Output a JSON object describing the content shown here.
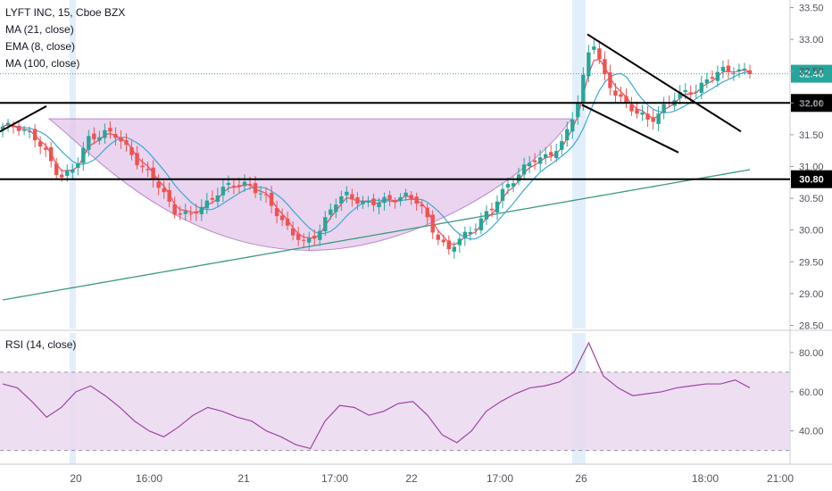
{
  "header": {
    "title": "LYFT INC, 15, Cboe BZX",
    "indicators": [
      "MA (21, close)",
      "EMA (8, close)",
      "MA (100, close)"
    ]
  },
  "rsi_label": "RSI (14, close)",
  "colors": {
    "candle_up": "#26a69a",
    "candle_down": "#ef5350",
    "ema": "#ef4b5c",
    "ma21": "#3fa7d6",
    "ma100": "#3a9a7e",
    "rsi_line": "#a043a9",
    "rsi_band": "#e9d7ee",
    "cup_fill": "#e3c6ea",
    "session_highlight": "#cfe4f8"
  },
  "chart_data": [
    {
      "type": "candlestick",
      "title": "LYFT INC, 15, Cboe BZX",
      "last_price": 32.46,
      "y_ticks": [
        28.5,
        29.0,
        29.5,
        30.0,
        30.5,
        31.0,
        31.5,
        32.0,
        32.5,
        33.0,
        33.5
      ],
      "ylim": [
        28.45,
        33.62
      ],
      "x_ticks": [
        "20",
        "16:00",
        "21",
        "17:00",
        "22",
        "17:00",
        "26",
        "18:00",
        "21:00"
      ],
      "horizontal_levels": [
        32.0,
        30.8
      ],
      "level_labels": [
        "32.00",
        "30.80"
      ],
      "price_label": "32.46",
      "annotations": [
        "rising wedge/trendline",
        "cup pattern",
        "falling wedge"
      ],
      "series_names": [
        "MA (21, close)",
        "EMA (8, close)",
        "MA (100, close)"
      ],
      "close_path": [
        31.6,
        31.65,
        31.5,
        31.2,
        30.85,
        30.95,
        31.45,
        31.55,
        31.45,
        31.2,
        30.9,
        30.65,
        30.3,
        30.2,
        30.4,
        30.6,
        30.7,
        30.75,
        30.55,
        30.3,
        30.0,
        29.75,
        30.0,
        30.4,
        30.55,
        30.45,
        30.4,
        30.5,
        30.55,
        30.4,
        30.0,
        29.65,
        29.9,
        30.1,
        30.3,
        30.7,
        30.9,
        31.1,
        31.2,
        31.35,
        32.0,
        33.05,
        32.3,
        32.1,
        31.85,
        31.7,
        31.95,
        32.1,
        32.2,
        32.35,
        32.5,
        32.55,
        32.46
      ]
    },
    {
      "type": "line",
      "title": "RSI (14, close)",
      "y_ticks": [
        40.0,
        60.0,
        80.0
      ],
      "band": [
        30,
        70
      ],
      "ylim": [
        23,
        90
      ],
      "values": [
        64,
        62,
        55,
        47,
        52,
        60,
        63,
        58,
        52,
        45,
        40,
        37,
        42,
        48,
        52,
        50,
        47,
        45,
        40,
        37,
        33,
        31,
        45,
        53,
        52,
        48,
        50,
        54,
        55,
        48,
        38,
        34,
        40,
        50,
        55,
        59,
        62,
        63,
        65,
        70,
        85,
        68,
        62,
        58,
        59,
        60,
        62,
        63,
        64,
        64,
        66,
        62
      ]
    }
  ]
}
